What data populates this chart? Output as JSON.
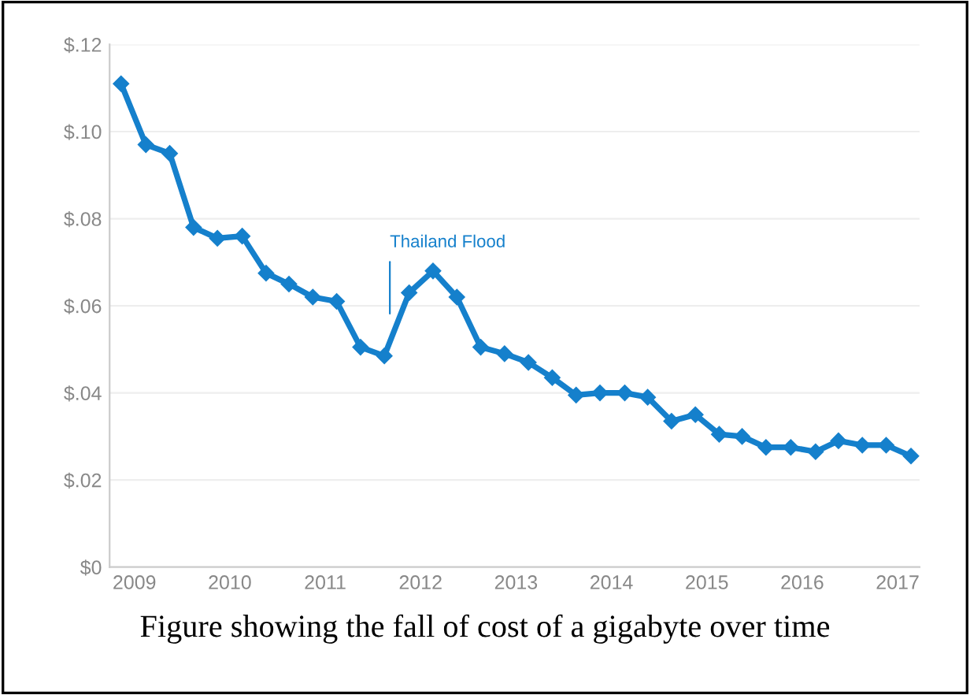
{
  "chart_data": {
    "type": "line",
    "x": [
      2008.86,
      2009.12,
      2009.37,
      2009.62,
      2009.87,
      2010.13,
      2010.38,
      2010.62,
      2010.87,
      2011.12,
      2011.37,
      2011.62,
      2011.88,
      2012.13,
      2012.38,
      2012.63,
      2012.88,
      2013.13,
      2013.38,
      2013.63,
      2013.88,
      2014.14,
      2014.38,
      2014.63,
      2014.88,
      2015.13,
      2015.37,
      2015.62,
      2015.88,
      2016.14,
      2016.38,
      2016.63,
      2016.88,
      2017.14
    ],
    "series": [
      {
        "color": "#1580cc",
        "values": [
          0.111,
          0.097,
          0.095,
          0.078,
          0.0755,
          0.076,
          0.0675,
          0.065,
          0.062,
          0.061,
          0.0505,
          0.0485,
          0.063,
          0.068,
          0.062,
          0.0505,
          0.049,
          0.047,
          0.0435,
          0.0395,
          0.04,
          0.04,
          0.039,
          0.0335,
          0.035,
          0.0305,
          0.03,
          0.0275,
          0.0275,
          0.0265,
          0.029,
          0.028,
          0.028,
          0.0255
        ]
      }
    ],
    "xlim": [
      2008.74,
      2017.23
    ],
    "xticks": [
      2009,
      2010,
      2011,
      2012,
      2013,
      2014,
      2015,
      2016,
      2017
    ],
    "ylim": [
      0,
      0.12
    ],
    "yticks": [
      {
        "value": 0,
        "label": "$0"
      },
      {
        "value": 0.02,
        "label": "$.02"
      },
      {
        "value": 0.04,
        "label": "$.04"
      },
      {
        "value": 0.06,
        "label": "$.06"
      },
      {
        "value": 0.08,
        "label": "$.08"
      },
      {
        "value": 0.1,
        "label": "$.10"
      },
      {
        "value": 0.12,
        "label": "$.12"
      }
    ],
    "grid": "y",
    "marker": "diamond",
    "line_style": "solid",
    "annotations": [
      "Thailand Flood",
      "Figure showing the fall of cost of a gigabyte over time"
    ]
  }
}
